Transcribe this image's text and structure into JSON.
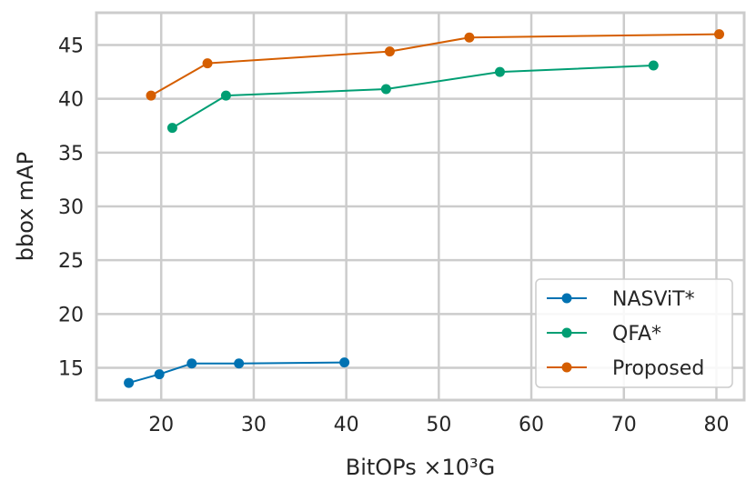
{
  "chart_data": {
    "type": "line",
    "title": "",
    "xlabel": "BitOPs ×10³G",
    "ylabel": "bbox mAP",
    "xlim": [
      13,
      83
    ],
    "ylim": [
      12,
      48
    ],
    "xticks": [
      20,
      30,
      40,
      50,
      60,
      70,
      80
    ],
    "yticks": [
      15,
      20,
      25,
      30,
      35,
      40,
      45
    ],
    "grid": true,
    "legend_position": "lower-right",
    "series": [
      {
        "name": "NASViT*",
        "color": "#0072b2",
        "x": [
          16.5,
          19.8,
          23.3,
          28.4,
          39.8
        ],
        "y": [
          13.6,
          14.4,
          15.4,
          15.4,
          15.5
        ]
      },
      {
        "name": "QFA*",
        "color": "#009e73",
        "x": [
          21.2,
          27.0,
          44.3,
          56.6,
          73.2
        ],
        "y": [
          37.3,
          40.3,
          40.9,
          42.5,
          43.1
        ]
      },
      {
        "name": "Proposed",
        "color": "#d55e00",
        "x": [
          18.9,
          25.0,
          44.7,
          53.3,
          80.3
        ],
        "y": [
          40.3,
          43.3,
          44.4,
          45.7,
          46.0
        ]
      }
    ]
  }
}
